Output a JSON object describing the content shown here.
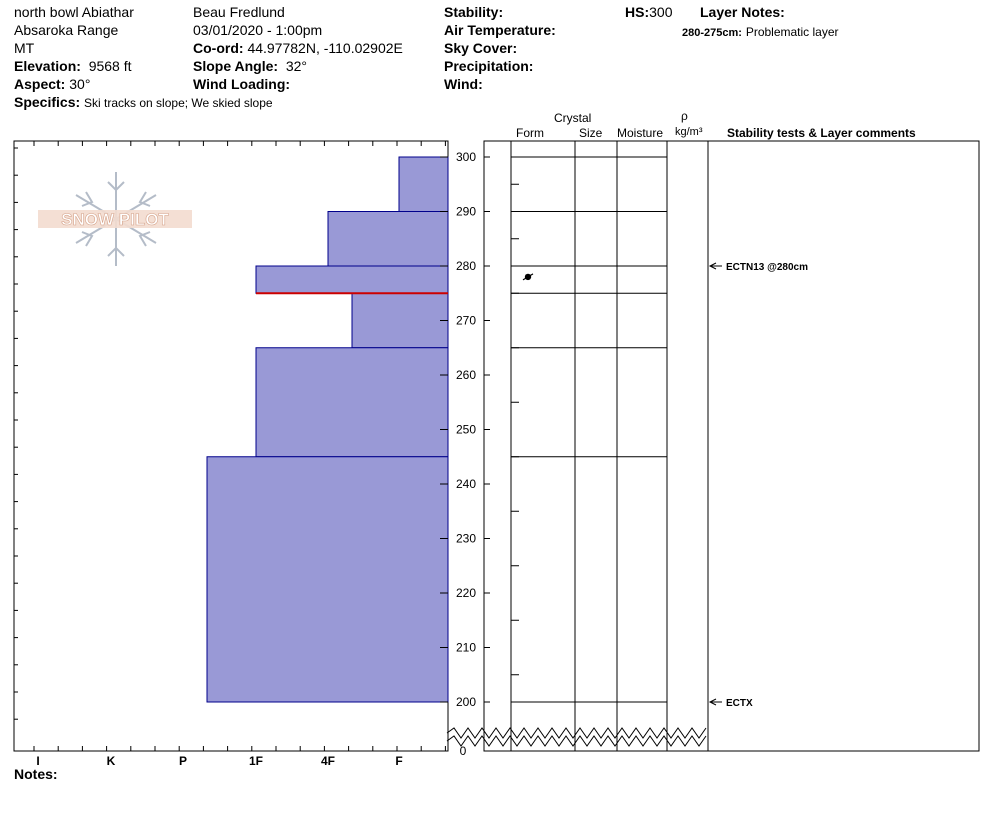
{
  "header": {
    "location": "north bowl Abiathar",
    "range": "Absaroka Range",
    "state": "MT",
    "elevation_label": "Elevation:",
    "elevation": "9568 ft",
    "aspect_label": "Aspect:",
    "aspect": "30°",
    "specifics_label": "Specifics:",
    "specifics": "Ski tracks on slope; We skied slope",
    "observer": "Beau  Fredlund",
    "datetime": "03/01/2020 - 1:00pm",
    "coord_label": "Co-ord:",
    "coord": "44.97782N, -110.02902E",
    "slope_label": "Slope Angle:",
    "slope": "32°",
    "wind_loading_label": "Wind Loading:",
    "stability_label": "Stability:",
    "air_temp_label": "Air Temperature:",
    "sky_label": "Sky Cover:",
    "precip_label": "Precipitation:",
    "wind_label": "Wind:",
    "hs_label": "HS:",
    "hs": "300",
    "layer_notes_label": "Layer Notes:",
    "layer_note_range": "280-275cm:",
    "layer_note_text": "Problematic layer"
  },
  "logo_text": "SNOW PILOT",
  "notes_label": "Notes:",
  "columns": {
    "crystal": "Crystal",
    "form": "Form",
    "size": "Size",
    "moisture": "Moisture",
    "rho": "ρ",
    "density_unit": "kg/m³",
    "comments": "Stability tests & Layer comments"
  },
  "colors": {
    "hardness_fill": "#9999d6",
    "hardness_stroke": "#00008b",
    "problem_layer": "#cc0000"
  },
  "chart_data": {
    "type": "bar",
    "title": "",
    "x_axis": {
      "scale": "hand hardness",
      "tick_labels": [
        "I",
        "K",
        "P",
        "1F",
        "4F",
        "F"
      ],
      "note": "reversed: hardness increases to the left"
    },
    "y_axis": {
      "unit": "cm",
      "tick_labels": [
        300,
        290,
        280,
        270,
        260,
        250,
        240,
        230,
        220,
        210,
        200,
        0
      ],
      "axis_break": "between 200 and 0"
    },
    "layers": [
      {
        "top": 300,
        "bottom": 290,
        "hardness": "F"
      },
      {
        "top": 290,
        "bottom": 280,
        "hardness": "4F"
      },
      {
        "top": 280,
        "bottom": 275,
        "hardness": "1F"
      },
      {
        "top": 275,
        "bottom": 265,
        "hardness": "4F-"
      },
      {
        "top": 265,
        "bottom": 245,
        "hardness": "1F"
      },
      {
        "top": 245,
        "bottom": 200,
        "hardness": "P-"
      }
    ],
    "problematic_layer": {
      "top": 280,
      "bottom": 275
    },
    "grain_form_marks": [
      {
        "height": 278,
        "symbol": "melt-freeze crust"
      }
    ],
    "stability_tests": [
      {
        "height": 280,
        "label": "ECTN13 @280cm"
      },
      {
        "height": 200,
        "label": "ECTX"
      }
    ]
  }
}
